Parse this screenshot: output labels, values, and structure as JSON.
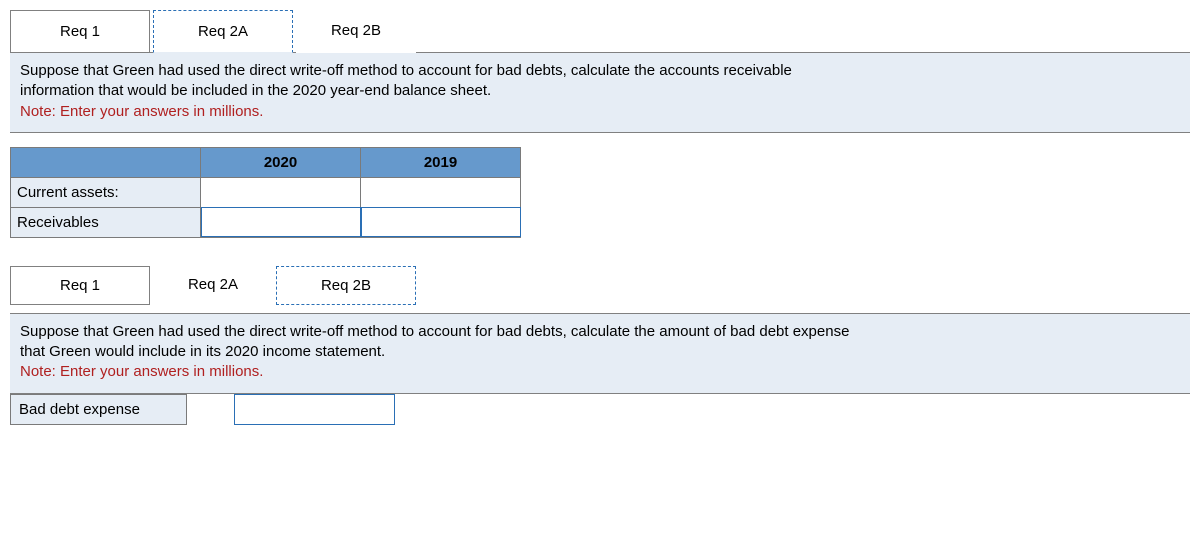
{
  "section1": {
    "tabs": [
      {
        "label": "Req 1",
        "active": false
      },
      {
        "label": "Req 2A",
        "active": true
      },
      {
        "label": "Req 2B",
        "active": false
      }
    ],
    "instruction_line1": "Suppose that Green had used the direct write-off method to account for bad debts, calculate the accounts receivable",
    "instruction_line2": "information that would be included in the 2020 year-end balance sheet.",
    "note": "Note: Enter your answers in millions.",
    "table": {
      "columns": [
        "2020",
        "2019"
      ],
      "rows": [
        {
          "label": "Current assets:",
          "inputs": [
            "",
            ""
          ],
          "editable": false
        },
        {
          "label": "Receivables",
          "inputs": [
            "",
            ""
          ],
          "editable": true
        }
      ]
    }
  },
  "section2": {
    "tabs": [
      {
        "label": "Req 1",
        "active": false
      },
      {
        "label": "Req 2A",
        "active": false
      },
      {
        "label": "Req 2B",
        "active": true
      }
    ],
    "instruction_line1": "Suppose that Green had used the direct write-off method to account for bad debts, calculate the amount of bad debt expense",
    "instruction_line2": "that Green would include in its 2020 income statement.",
    "note": "Note: Enter your answers in millions.",
    "row": {
      "label": "Bad debt expense",
      "value": ""
    }
  }
}
